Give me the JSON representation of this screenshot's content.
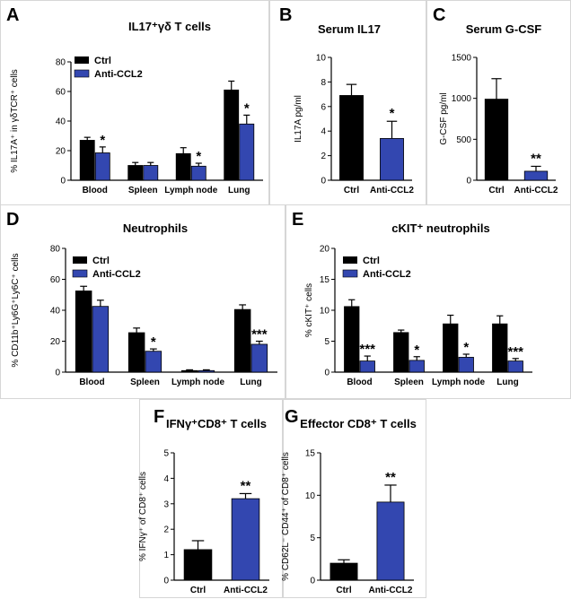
{
  "colors": {
    "ctrl": "#000000",
    "treat": "#3347b0",
    "axis": "#000000",
    "border": "#d6d6d6"
  },
  "chart_data": [
    {
      "id": "A",
      "type": "bar",
      "title": "IL17⁺γδ T cells",
      "ylabel": "% IL17A⁺ in γδTCR⁺ cells",
      "ylim": [
        0,
        80
      ],
      "yticks": [
        0,
        20,
        40,
        60,
        80
      ],
      "categories": [
        "Blood",
        "Spleen",
        "Lymph node",
        "Lung"
      ],
      "legend": [
        "Ctrl",
        "Anti-CCL2"
      ],
      "series": [
        {
          "name": "Ctrl",
          "values": [
            27,
            10,
            18,
            61
          ],
          "errors": [
            2,
            2,
            4,
            6
          ]
        },
        {
          "name": "Anti-CCL2",
          "values": [
            18.5,
            10,
            9.5,
            38
          ],
          "errors": [
            4,
            2,
            2,
            6
          ]
        }
      ],
      "significance": [
        "*",
        "",
        "*",
        "*"
      ]
    },
    {
      "id": "B",
      "type": "bar",
      "title": "Serum IL17",
      "ylabel": "IL17A pg/ml",
      "ylim": [
        0,
        10
      ],
      "yticks": [
        0,
        2,
        4,
        6,
        8,
        10
      ],
      "categories": [
        "Ctrl",
        "Anti-CCL2"
      ],
      "values": [
        6.9,
        3.4
      ],
      "errors": [
        0.9,
        1.4
      ],
      "significance": [
        "",
        "*"
      ]
    },
    {
      "id": "C",
      "type": "bar",
      "title": "Serum G-CSF",
      "ylabel": "G-CSF pg/ml",
      "ylim": [
        0,
        1500
      ],
      "yticks": [
        0,
        500,
        1000,
        1500
      ],
      "categories": [
        "Ctrl",
        "Anti-CCL2"
      ],
      "values": [
        990,
        110
      ],
      "errors": [
        250,
        60
      ],
      "significance": [
        "",
        "**"
      ]
    },
    {
      "id": "D",
      "type": "bar",
      "title": "Neutrophils",
      "ylabel": "% CD11b⁺Ly6G⁺Ly6C⁺ cells",
      "ylim": [
        0,
        80
      ],
      "yticks": [
        0,
        20,
        40,
        60,
        80
      ],
      "categories": [
        "Blood",
        "Spleen",
        "Lymph node",
        "Lung"
      ],
      "legend": [
        "Ctrl",
        "Anti-CCL2"
      ],
      "series": [
        {
          "name": "Ctrl",
          "values": [
            52.5,
            25.5,
            1,
            40.5
          ],
          "errors": [
            3,
            3,
            0.5,
            3
          ]
        },
        {
          "name": "Anti-CCL2",
          "values": [
            42.5,
            13.5,
            1,
            18
          ],
          "errors": [
            4,
            1.5,
            0.5,
            2
          ]
        }
      ],
      "significance": [
        "",
        "*",
        "",
        "***"
      ]
    },
    {
      "id": "E",
      "type": "bar",
      "title": "cKIT⁺ neutrophils",
      "ylabel": "% cKIT⁺ cells",
      "ylim": [
        0,
        20
      ],
      "yticks": [
        0,
        5,
        10,
        15,
        20
      ],
      "categories": [
        "Blood",
        "Spleen",
        "Lymph node",
        "Lung"
      ],
      "legend": [
        "Ctrl",
        "Anti-CCL2"
      ],
      "series": [
        {
          "name": "Ctrl",
          "values": [
            10.6,
            6.4,
            7.8,
            7.8
          ],
          "errors": [
            1.1,
            0.4,
            1.4,
            1.3
          ]
        },
        {
          "name": "Anti-CCL2",
          "values": [
            1.8,
            1.9,
            2.4,
            1.8
          ],
          "errors": [
            0.8,
            0.6,
            0.5,
            0.4
          ]
        }
      ],
      "significance": [
        "***",
        "*",
        "*",
        "***"
      ]
    },
    {
      "id": "F",
      "type": "bar",
      "title": "IFNγ⁺CD8⁺ T cells",
      "ylabel": "% IFNγ⁺ of CD8⁺ cells",
      "ylim": [
        0,
        5
      ],
      "yticks": [
        0,
        1,
        2,
        3,
        4,
        5
      ],
      "categories": [
        "Ctrl",
        "Anti-CCL2"
      ],
      "values": [
        1.2,
        3.2
      ],
      "errors": [
        0.35,
        0.2
      ],
      "significance": [
        "",
        "**"
      ]
    },
    {
      "id": "G",
      "type": "bar",
      "title": "Effector CD8⁺ T cells",
      "ylabel": "% CD62L⁻ CD44⁺ of CD8⁺ cells",
      "ylim": [
        0,
        15
      ],
      "yticks": [
        0,
        5,
        10,
        15
      ],
      "categories": [
        "Ctrl",
        "Anti-CCL2"
      ],
      "values": [
        2.0,
        9.2
      ],
      "errors": [
        0.4,
        2.0
      ],
      "significance": [
        "",
        "**"
      ]
    }
  ]
}
